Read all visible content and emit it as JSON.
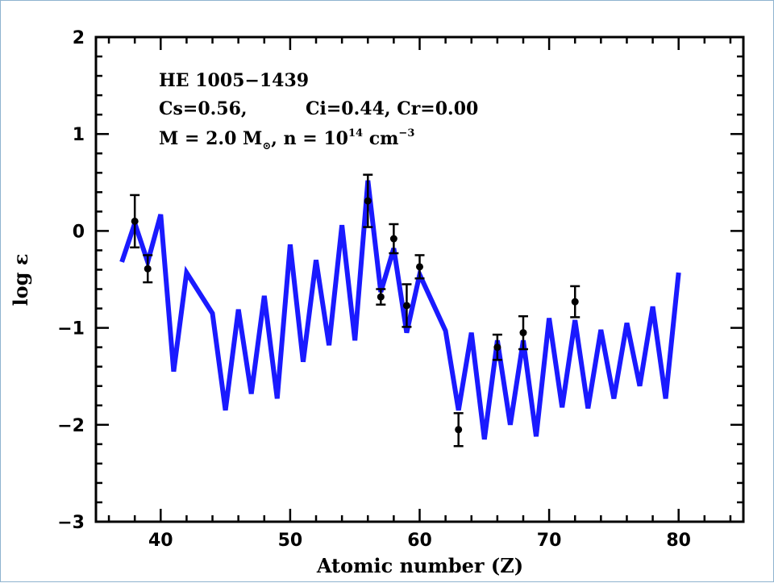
{
  "chart_data": {
    "type": "line",
    "title": "",
    "xlabel": "Atomic number (Z)",
    "ylabel": "log ε",
    "xlim": [
      35,
      85
    ],
    "ylim": [
      -3,
      2
    ],
    "x_ticks": [
      40,
      50,
      60,
      70,
      80
    ],
    "y_ticks": [
      -3,
      -2,
      -1,
      0,
      1,
      2
    ],
    "x_tick_labels": [
      "40",
      "50",
      "60",
      "70",
      "80"
    ],
    "y_tick_labels": [
      "−3",
      "−2",
      "−1",
      "0",
      "1",
      "2"
    ],
    "grid": false,
    "legend": "none",
    "annotations": {
      "star": "HE 1005−1439",
      "params_cs": "Cs=0.56,",
      "params_rest": "Ci=0.44, Cr=0.00",
      "mass_prefix": "M = 2.0 M",
      "mass_sub": "⊙",
      "density_prefix": ", n = 10",
      "density_exp": "14",
      "density_unit": " cm",
      "density_unit_exp": "−3"
    },
    "series": [
      {
        "type": "line",
        "color": "#1a1aff",
        "points": [
          [
            37,
            -0.32
          ],
          [
            38,
            0.08
          ],
          [
            39,
            -0.32
          ],
          [
            40,
            0.17
          ],
          [
            41,
            -1.45
          ],
          [
            42,
            -0.43
          ],
          [
            44,
            -0.85
          ],
          [
            45,
            -1.85
          ],
          [
            46,
            -0.81
          ],
          [
            47,
            -1.68
          ],
          [
            48,
            -0.67
          ],
          [
            49,
            -1.73
          ],
          [
            50,
            -0.14
          ],
          [
            51,
            -1.35
          ],
          [
            52,
            -0.3
          ],
          [
            53,
            -1.18
          ],
          [
            54,
            0.06
          ],
          [
            55,
            -1.13
          ],
          [
            56,
            0.52
          ],
          [
            57,
            -0.63
          ],
          [
            58,
            -0.18
          ],
          [
            59,
            -1.05
          ],
          [
            60,
            -0.45
          ],
          [
            62,
            -1.03
          ],
          [
            63,
            -1.85
          ],
          [
            64,
            -1.05
          ],
          [
            65,
            -2.15
          ],
          [
            66,
            -1.13
          ],
          [
            67,
            -2.0
          ],
          [
            68,
            -1.13
          ],
          [
            69,
            -2.12
          ],
          [
            70,
            -0.9
          ],
          [
            71,
            -1.82
          ],
          [
            72,
            -0.92
          ],
          [
            73,
            -1.83
          ],
          [
            74,
            -1.02
          ],
          [
            75,
            -1.73
          ],
          [
            76,
            -0.95
          ],
          [
            77,
            -1.6
          ],
          [
            78,
            -0.78
          ],
          [
            79,
            -1.73
          ],
          [
            80,
            -0.43
          ]
        ]
      },
      {
        "type": "scatter",
        "color": "#000000",
        "points": [
          {
            "x": 38,
            "y": 0.1,
            "err": 0.27
          },
          {
            "x": 39,
            "y": -0.39,
            "err": 0.14
          },
          {
            "x": 56,
            "y": 0.31,
            "err": 0.27
          },
          {
            "x": 57,
            "y": -0.68,
            "err": 0.08
          },
          {
            "x": 58,
            "y": -0.08,
            "err": 0.15
          },
          {
            "x": 59,
            "y": -0.77,
            "err": 0.22
          },
          {
            "x": 60,
            "y": -0.37,
            "err": 0.12
          },
          {
            "x": 63,
            "y": -2.05,
            "err": 0.17
          },
          {
            "x": 66,
            "y": -1.2,
            "err": 0.13
          },
          {
            "x": 68,
            "y": -1.05,
            "err": 0.17
          },
          {
            "x": 72,
            "y": -0.73,
            "err": 0.16
          }
        ]
      }
    ]
  }
}
